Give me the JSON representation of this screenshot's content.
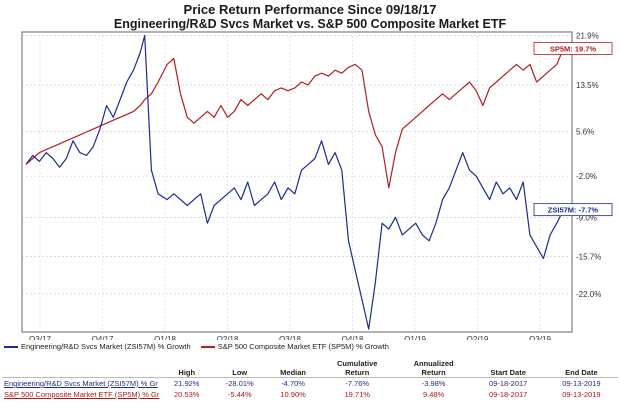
{
  "title": "Price Return Performance Since 09/18/17",
  "subtitle": "Engineering/R&D Svcs Market  vs.  S&P 500 Composite Market ETF",
  "chart_data": {
    "type": "line",
    "x_ticks": [
      "Q3/17",
      "Q4/17",
      "Q1/18",
      "Q2/18",
      "Q3/18",
      "Q4/18",
      "Q1/19",
      "Q2/19",
      "Q3/19"
    ],
    "y_ticks": [
      "21.9%",
      "13.5%",
      "5.6%",
      "-2.0%",
      "-9.0%",
      "-15.7%",
      "-22.0%"
    ],
    "y_tick_values": [
      21.9,
      13.5,
      5.6,
      -2.0,
      -9.0,
      -15.7,
      -22.0
    ],
    "ylim": [
      -28.5,
      22.5
    ],
    "x_range": [
      0,
      24.2
    ],
    "series": [
      {
        "name": "S&P 500 Composite Market ETF (SP5M) % Growth",
        "color": "#b41e1e",
        "end_label": "SP5M: 19.7%",
        "x": [
          0,
          0.3,
          0.6,
          0.9,
          1.2,
          1.5,
          1.8,
          2.1,
          2.4,
          2.7,
          3,
          3.3,
          3.6,
          3.9,
          4.2,
          4.5,
          4.8,
          5.1,
          5.3,
          5.6,
          5.9,
          6.3,
          6.6,
          6.9,
          7.2,
          7.5,
          7.8,
          8.1,
          8.4,
          8.7,
          9,
          9.3,
          9.6,
          9.9,
          10.2,
          10.5,
          10.8,
          11.1,
          11.4,
          11.7,
          12,
          12.3,
          12.6,
          12.9,
          13.2,
          13.5,
          13.8,
          14.1,
          14.4,
          14.7,
          15,
          15.3,
          15.6,
          15.9,
          16.2,
          16.5,
          16.8,
          17.1,
          17.4,
          17.7,
          18,
          18.3,
          18.6,
          18.9,
          19.2,
          19.5,
          19.8,
          20.1,
          20.4,
          20.7,
          21,
          21.3,
          21.6,
          21.9,
          22.2,
          22.5,
          22.8,
          23.1,
          23.4,
          23.7,
          24
        ],
        "values": [
          0,
          1,
          2,
          2.5,
          3,
          3.5,
          4,
          4.5,
          5,
          5.5,
          6,
          6.5,
          7,
          7.5,
          8,
          8.5,
          9,
          10,
          11,
          12,
          14,
          17,
          18,
          12,
          8,
          7,
          8,
          9,
          8,
          10,
          8,
          9,
          11,
          10,
          11,
          12,
          11,
          12.5,
          13,
          12.5,
          13,
          14,
          13.5,
          15,
          15.5,
          15,
          16,
          15.5,
          16.5,
          17,
          16,
          9,
          5,
          3,
          -4,
          2,
          6,
          7,
          8,
          9,
          10,
          11,
          12,
          11,
          12,
          13,
          14,
          12.5,
          10,
          13,
          14,
          15,
          16,
          17,
          16,
          17,
          14,
          15,
          16,
          17,
          19.7
        ]
      },
      {
        "name": "Engineering/R&D Svcs Market (ZSI57M) % Growth",
        "color": "#1e2a96",
        "end_label": "ZSI57M: -7.7%",
        "x": [
          0,
          0.3,
          0.6,
          0.9,
          1.2,
          1.5,
          1.8,
          2.1,
          2.4,
          2.7,
          3,
          3.3,
          3.6,
          3.9,
          4.2,
          4.5,
          4.8,
          5.1,
          5.3,
          5.6,
          5.9,
          6.3,
          6.6,
          6.9,
          7.2,
          7.5,
          7.8,
          8.1,
          8.4,
          8.7,
          9,
          9.3,
          9.6,
          9.9,
          10.2,
          10.5,
          10.8,
          11.1,
          11.4,
          11.7,
          12,
          12.3,
          12.6,
          12.9,
          13.2,
          13.5,
          13.8,
          14.1,
          14.4,
          14.7,
          15,
          15.3,
          15.6,
          15.9,
          16.2,
          16.5,
          16.8,
          17.1,
          17.4,
          17.7,
          18,
          18.3,
          18.6,
          18.9,
          19.2,
          19.5,
          19.8,
          20.1,
          20.4,
          20.7,
          21,
          21.3,
          21.6,
          21.9,
          22.2,
          22.5,
          22.8,
          23.1,
          23.4,
          23.7,
          24
        ],
        "values": [
          0,
          1.5,
          0.5,
          2,
          1,
          -0.5,
          1,
          4,
          2,
          1.5,
          3,
          6,
          10,
          8,
          11,
          14,
          16,
          19,
          21.9,
          -1,
          -5,
          -6,
          -5,
          -6,
          -7,
          -6,
          -5,
          -10,
          -7,
          -6,
          -5,
          -4,
          -6,
          -3,
          -7,
          -6,
          -5,
          -3,
          -6,
          -4,
          -5,
          -1,
          0,
          1,
          4,
          0,
          2,
          -1,
          -13,
          -18,
          -23,
          -28,
          -20,
          -10,
          -11,
          -9,
          -12,
          -11,
          -10,
          -12,
          -13,
          -10,
          -6,
          -4,
          -1,
          2,
          -1,
          -2,
          -4,
          -6,
          -3,
          -5,
          -4,
          -6,
          -3,
          -12,
          -14,
          -16,
          -12,
          -10,
          -7.7
        ]
      }
    ]
  },
  "legend": {
    "items": [
      {
        "label": "Engineering/R&D Svcs Market (ZSI57M) % Growth",
        "color": "#1e2a96"
      },
      {
        "label": "S&P 500 Composite Market ETF (SP5M) % Growth",
        "color": "#b41e1e"
      }
    ]
  },
  "table": {
    "headers": [
      "",
      "High",
      "Low",
      "Median",
      "Cumulative\nReturn",
      "Annualized\nReturn",
      "Start Date",
      "End Date"
    ],
    "rows": [
      {
        "name": "Engineering/R&D Svcs Market (ZSI57M) % Gr",
        "high": "21.92%",
        "low": "-28.01%",
        "median": "-4.70%",
        "cum": "-7.76%",
        "ann": "-3.98%",
        "start": "09-18-2017",
        "end": "09-13-2019"
      },
      {
        "name": "S&P 500 Composite Market ETF (SP5M) % Gr",
        "high": "20.53%",
        "low": "-5.44%",
        "median": "10.90%",
        "cum": "19.71%",
        "ann": "9.48%",
        "start": "09-18-2017",
        "end": "09-13-2019"
      }
    ]
  }
}
